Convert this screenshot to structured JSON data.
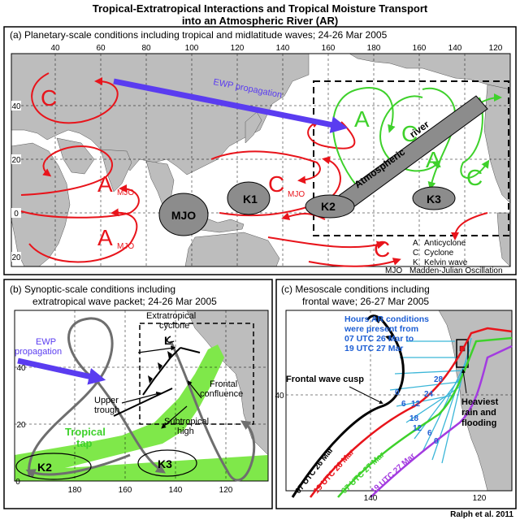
{
  "title": {
    "line1": "Tropical-Extratropical Interactions and Tropical Moisture Transport",
    "line2": "into an Atmospheric River (AR)"
  },
  "panel_a": {
    "heading": "(a)  Planetary-scale conditions including tropical and midlatitude waves;  24-26 Mar 2005",
    "top_lon_ticks": [
      "40",
      "60",
      "80",
      "100",
      "120",
      "140",
      "160",
      "180",
      "160",
      "140",
      "120"
    ],
    "left_lat_ticks": [
      "40",
      "20",
      "0",
      "20"
    ],
    "ewp_label": "EWP propagation",
    "river_label_1": "Atmospheric",
    "river_label_2": "river",
    "letter_c": "C",
    "letter_a": "A",
    "mjo_sub": "MJO",
    "k1": "K1",
    "k2": "K2",
    "k3": "K3",
    "mjo_blob": "MJO",
    "legend": [
      {
        "key": "A",
        "desc": "Anticyclone"
      },
      {
        "key": "C",
        "desc": "Cyclone"
      },
      {
        "key": "K",
        "desc": "Kelvin wave"
      },
      {
        "key": "MJO",
        "desc": "Madden-Julian Oscillation"
      }
    ]
  },
  "panel_b": {
    "heading_1": "(b)  Synoptic-scale conditions including",
    "heading_2": "extratropical wave packet;  24-26 Mar 2005",
    "ewp_1": "EWP",
    "ewp_2": "propagation",
    "extratropical_1": "Extratropical",
    "extratropical_2": "cyclone",
    "cyclone_L": "L",
    "upper_trough_1": "Upper",
    "upper_trough_2": "trough",
    "frontal_1": "Frontal",
    "frontal_2": "confluence",
    "subtropical_1": "Subtropical",
    "subtropical_2": "high",
    "tropical_1": "Tropical",
    "tropical_2": "tap",
    "k2": "K2",
    "k3": "K3",
    "lat_ticks": [
      "40",
      "20",
      "0"
    ],
    "lon_ticks": [
      "180",
      "160",
      "140",
      "120"
    ]
  },
  "panel_c": {
    "heading_1": "(c)  Mesoscale conditions including",
    "heading_2": "frontal wave;  26-27 Mar 2005",
    "hours_1": "Hours AR conditions",
    "hours_2": "were present from",
    "hours_3": "07 UTC  26 Mar to",
    "hours_4": "19 UTC  27 Mar",
    "cusp": "Frontal wave cusp",
    "heavy_1": "Heaviest",
    "heavy_2": "rain and",
    "heavy_3": "flooding",
    "front_1": "07 UTC  26 Mar",
    "front_2": "19 UTC  26 Mar",
    "front_3": "07 UTC  27 Mar",
    "front_4": "19 UTC  27 Mar",
    "hour_labels": [
      "0",
      "6",
      "12",
      "24",
      "28",
      "18",
      "12",
      "6",
      "0"
    ],
    "lat_tick": "40",
    "lon_ticks": [
      "140",
      "120"
    ]
  },
  "credit": "Ralph et al. 2011",
  "colors": {
    "red": "#e8141b",
    "green": "#3ed12b",
    "purple": "#5a3cf0",
    "gray_fill": "#8c8c8c",
    "land": "#bdbdbd",
    "blue_text": "#1e5fd4",
    "cyan": "#3bb6d8",
    "tap_green": "#7fe84a"
  }
}
